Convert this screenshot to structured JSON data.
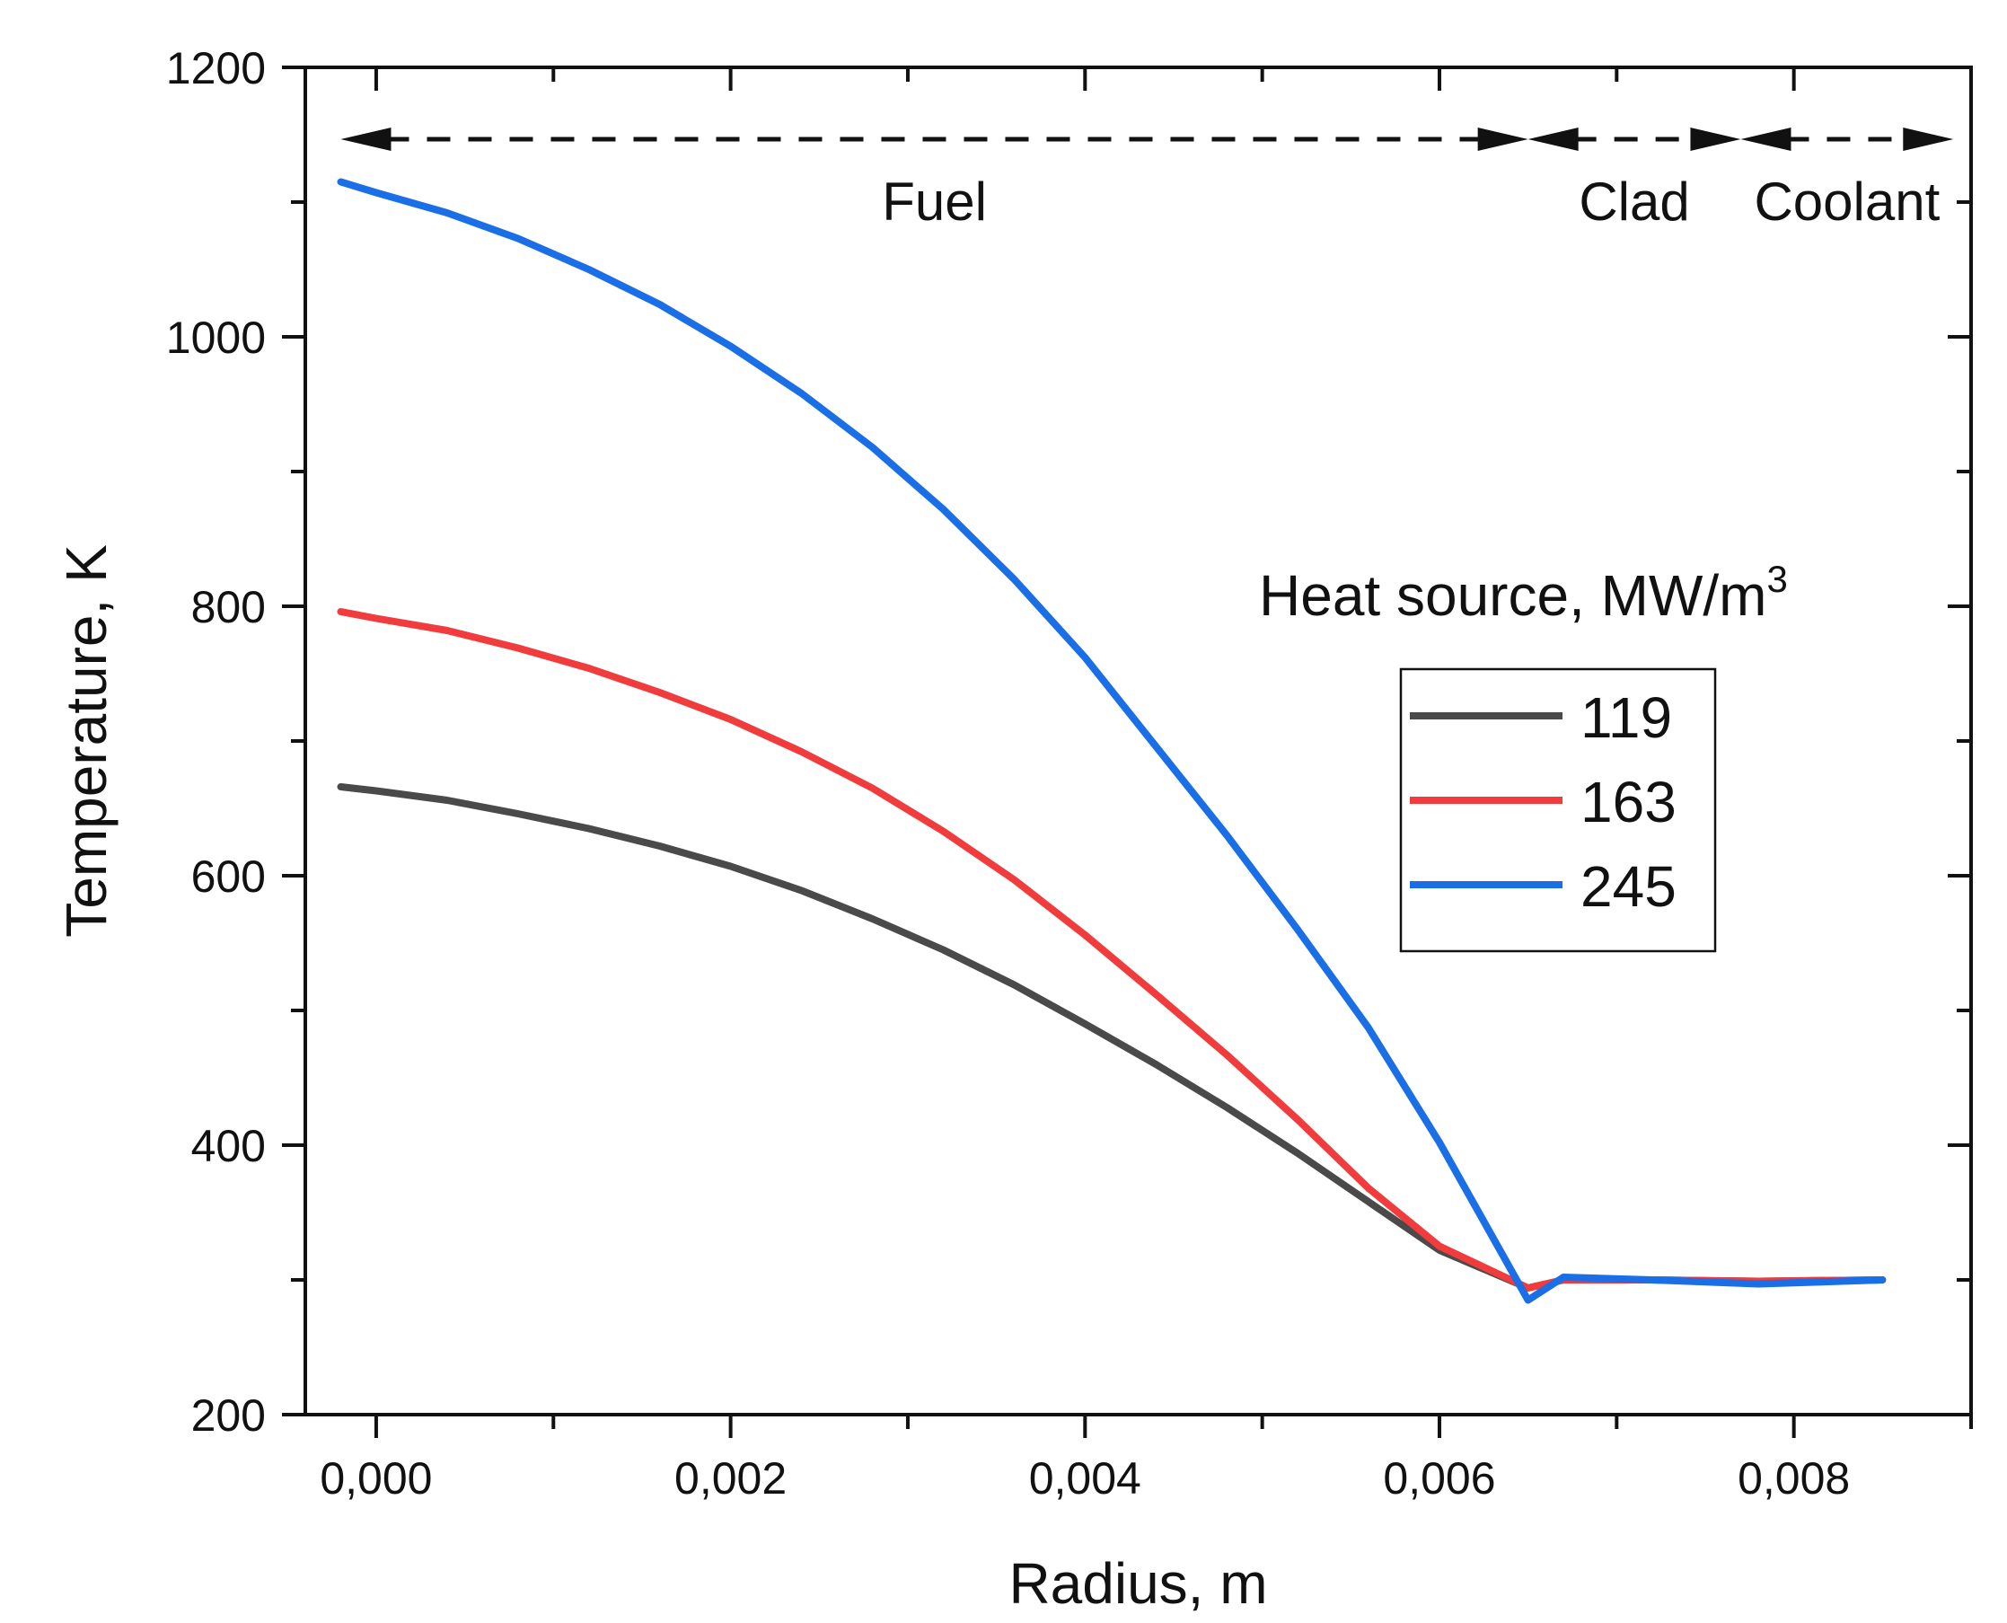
{
  "chart_data": {
    "type": "line",
    "xlabel": "Radius, m",
    "ylabel": "Temperature, K",
    "xlim": [
      -0.0004,
      0.009
    ],
    "ylim": [
      200,
      1200
    ],
    "x_ticks": [
      0.0,
      0.002,
      0.004,
      0.006,
      0.008
    ],
    "x_tick_labels": [
      "0,000",
      "0,002",
      "0,004",
      "0,006",
      "0,008"
    ],
    "y_ticks": [
      200,
      400,
      600,
      800,
      1000,
      1200
    ],
    "y_tick_labels": [
      "200",
      "400",
      "600",
      "800",
      "1000",
      "1200"
    ],
    "grid": false,
    "legend": {
      "title": "Heat source, MW/m",
      "title_superscript": "3",
      "placement": "right"
    },
    "regions": [
      {
        "label": "Fuel",
        "x_start": -0.0002,
        "x_end": 0.0065
      },
      {
        "label": "Clad",
        "x_start": 0.0065,
        "x_end": 0.0077
      },
      {
        "label": "Coolant",
        "x_start": 0.0077,
        "x_end": 0.0089
      }
    ],
    "series": [
      {
        "name": "119",
        "color": "#4a4a4a",
        "x": [
          -0.0002,
          0.0,
          0.0004,
          0.0008,
          0.0012,
          0.0016,
          0.002,
          0.0024,
          0.0028,
          0.0032,
          0.0036,
          0.004,
          0.0044,
          0.0048,
          0.0052,
          0.0056,
          0.006,
          0.0065,
          0.0067,
          0.0072,
          0.0078,
          0.0085
        ],
        "y": [
          666,
          663,
          656,
          646,
          635,
          622,
          607,
          589,
          568,
          545,
          519,
          490,
          460,
          428,
          394,
          358,
          322,
          294,
          300,
          300,
          299,
          300
        ]
      },
      {
        "name": "163",
        "color": "#f03c3c",
        "x": [
          -0.0002,
          0.0,
          0.0004,
          0.0008,
          0.0012,
          0.0016,
          0.002,
          0.0024,
          0.0028,
          0.0032,
          0.0036,
          0.004,
          0.0044,
          0.0048,
          0.0052,
          0.0056,
          0.006,
          0.0065,
          0.0067,
          0.0072,
          0.0078,
          0.0085
        ],
        "y": [
          796,
          791,
          782,
          769,
          754,
          736,
          716,
          692,
          665,
          633,
          597,
          556,
          512,
          467,
          419,
          368,
          325,
          294,
          300,
          300,
          299,
          300
        ]
      },
      {
        "name": "245",
        "color": "#1a6ee6",
        "x": [
          -0.0002,
          0.0,
          0.0004,
          0.0008,
          0.0012,
          0.0016,
          0.002,
          0.0024,
          0.0028,
          0.0032,
          0.0036,
          0.004,
          0.0044,
          0.0048,
          0.0052,
          0.0056,
          0.006,
          0.0065,
          0.0067,
          0.0072,
          0.0078,
          0.0085
        ],
        "y": [
          1115,
          1107,
          1092,
          1073,
          1050,
          1024,
          993,
          958,
          918,
          872,
          820,
          762,
          696,
          630,
          560,
          487,
          402,
          285,
          302,
          300,
          297,
          300
        ]
      }
    ]
  }
}
